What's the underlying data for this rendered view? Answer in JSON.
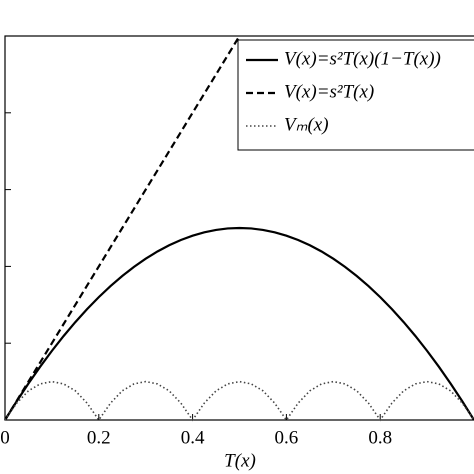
{
  "chart_data": {
    "type": "line",
    "xlabel": "T(x)",
    "x": [
      0,
      0.025,
      0.05,
      0.075,
      0.1,
      0.125,
      0.15,
      0.175,
      0.2,
      0.225,
      0.25,
      0.275,
      0.3,
      0.325,
      0.35,
      0.375,
      0.4,
      0.425,
      0.45,
      0.475,
      0.5,
      0.525,
      0.55,
      0.575,
      0.6,
      0.625,
      0.65,
      0.675,
      0.7,
      0.725,
      0.75,
      0.775,
      0.8,
      0.825,
      0.85,
      0.875,
      0.9,
      0.925,
      0.95,
      0.975,
      1
    ],
    "series": [
      {
        "name": "V(x)=s²T(x)(1−T(x))",
        "color": "#000",
        "dash": "solid",
        "values": [
          0,
          0.0244,
          0.0475,
          0.0694,
          0.09,
          0.1094,
          0.1275,
          0.1444,
          0.16,
          0.1744,
          0.1875,
          0.1994,
          0.21,
          0.2194,
          0.2275,
          0.2344,
          0.24,
          0.2444,
          0.2475,
          0.2494,
          0.25,
          0.2494,
          0.2475,
          0.2444,
          0.24,
          0.2344,
          0.2275,
          0.2194,
          0.21,
          0.1994,
          0.1875,
          0.1744,
          0.16,
          0.1444,
          0.1275,
          0.1094,
          0.09,
          0.0694,
          0.0475,
          0.0244,
          0
        ]
      },
      {
        "name": "V(x)=s²T(x)",
        "color": "#000",
        "dash": "dashed",
        "values": [
          0,
          0.025,
          0.05,
          0.075,
          0.1,
          0.125,
          0.15,
          0.175,
          0.2,
          0.225,
          0.25,
          0.275,
          0.3,
          0.325,
          0.35,
          0.375,
          0.4,
          0.425,
          0.45,
          0.475,
          0.5,
          null,
          null,
          null,
          null,
          null,
          null,
          null,
          null,
          null,
          null,
          null,
          null,
          null,
          null,
          null,
          null,
          null,
          null,
          null,
          null
        ]
      },
      {
        "name": "Vₘ(x)",
        "color": "#444",
        "dash": "dotted",
        "values": [
          0,
          0.022,
          0.038,
          0.047,
          0.05,
          0.047,
          0.038,
          0.022,
          0,
          0.022,
          0.038,
          0.047,
          0.05,
          0.047,
          0.038,
          0.022,
          0,
          0.022,
          0.038,
          0.047,
          0.05,
          0.047,
          0.038,
          0.022,
          0,
          0.022,
          0.038,
          0.047,
          0.05,
          0.047,
          0.038,
          0.022,
          0,
          0.022,
          0.038,
          0.047,
          0.05,
          0.047,
          0.038,
          0.022,
          0
        ]
      }
    ],
    "xlim": [
      0,
      1
    ],
    "ylim": [
      0,
      0.5
    ],
    "xticks": [
      {
        "value": 0,
        "label": "0"
      },
      0.2,
      0.4,
      0.6,
      0.8
    ],
    "yticks": [
      0.1,
      0.2,
      0.3,
      0.4
    ],
    "legend": "upper right"
  }
}
